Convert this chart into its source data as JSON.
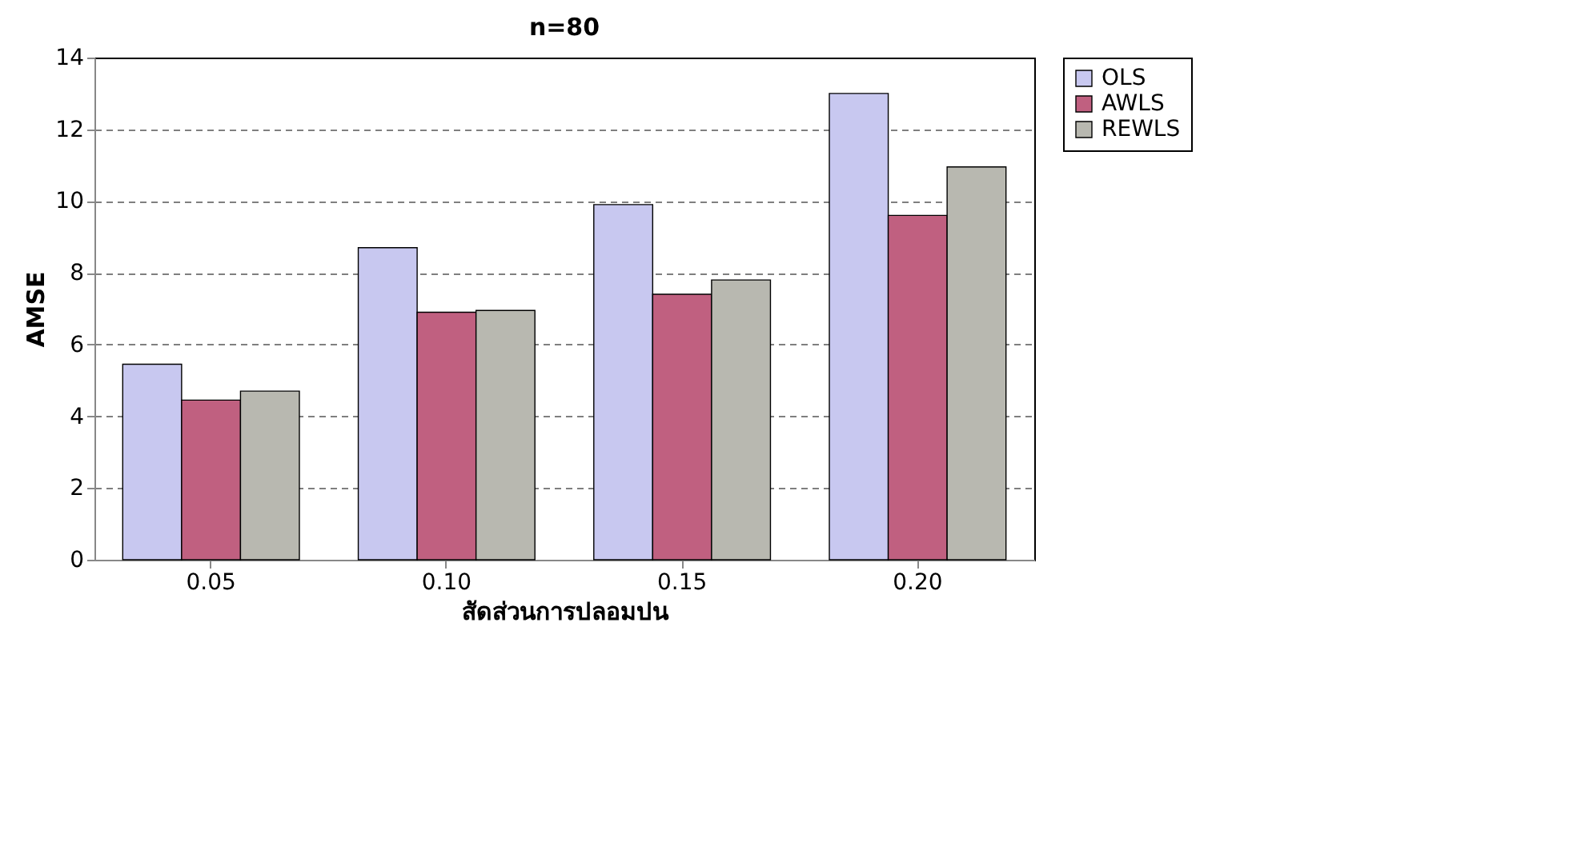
{
  "chart_data": {
    "type": "bar",
    "title": "n=80",
    "xlabel": "สัดส่วนการปลอมปน",
    "ylabel": "AMSE",
    "categories": [
      "0.05",
      "0.10",
      "0.15",
      "0.20"
    ],
    "series": [
      {
        "name": "OLS",
        "color": "#c8c8f0",
        "values": [
          5.45,
          8.7,
          9.9,
          13.0
        ]
      },
      {
        "name": "AWLS",
        "color": "#c06080",
        "values": [
          4.45,
          6.9,
          7.4,
          9.6
        ]
      },
      {
        "name": "REWLS",
        "color": "#b8b8b0",
        "values": [
          4.7,
          6.95,
          7.8,
          10.95
        ]
      }
    ],
    "ylim": [
      0,
      14
    ],
    "yticks": [
      0,
      2,
      4,
      6,
      8,
      10,
      12,
      14
    ],
    "grid": "y",
    "legend": "right"
  }
}
